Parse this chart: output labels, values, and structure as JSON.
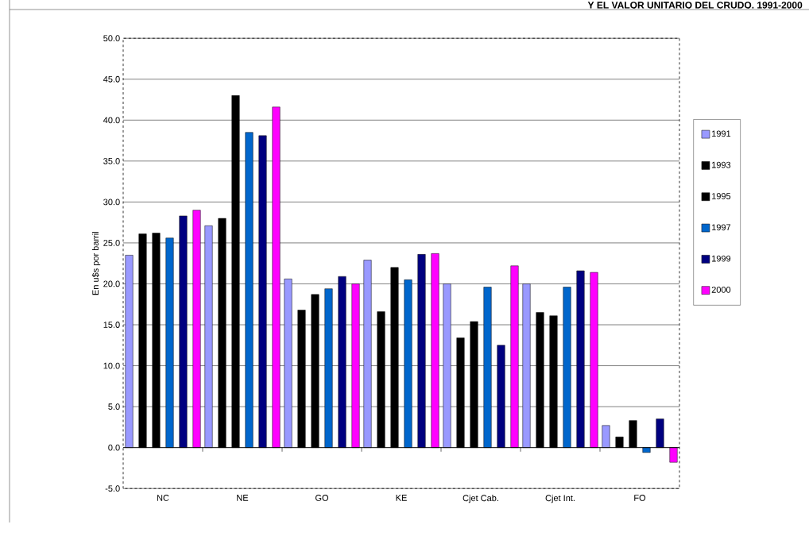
{
  "chart_data": {
    "type": "bar",
    "title": "Y EL VALOR UNITARIO DEL CRUDO. 1991-2000",
    "ylabel": "En u$s por barril",
    "categories": [
      "NC",
      "NE",
      "GO",
      "KE",
      "Cjet Cab.",
      "Cjet Int.",
      "FO"
    ],
    "series": [
      {
        "name": "1991",
        "color": "#9999ff",
        "values": [
          23.5,
          27.1,
          20.6,
          22.9,
          20.0,
          20.0,
          2.7
        ]
      },
      {
        "name": "1993",
        "color": "#000000",
        "values": [
          26.1,
          28.0,
          16.8,
          16.6,
          13.4,
          16.5,
          1.3
        ]
      },
      {
        "name": "1995",
        "color": "#000000",
        "values": [
          26.2,
          43.0,
          18.7,
          22.0,
          15.4,
          16.1,
          3.3
        ]
      },
      {
        "name": "1997",
        "color": "#0066cc",
        "values": [
          25.6,
          38.5,
          19.4,
          20.5,
          19.6,
          19.6,
          -0.6
        ]
      },
      {
        "name": "1999",
        "color": "#000080",
        "values": [
          28.3,
          38.1,
          20.9,
          23.6,
          12.5,
          21.6,
          3.5
        ]
      },
      {
        "name": "2000",
        "color": "#ff00ff",
        "values": [
          29.0,
          41.6,
          20.0,
          23.7,
          22.2,
          21.4,
          -1.8
        ]
      }
    ],
    "ylim": [
      -5,
      50
    ],
    "yticks": [
      {
        "value": -5,
        "label": "-5.0"
      },
      {
        "value": 0,
        "label": "0.0"
      },
      {
        "value": 5,
        "label": "5.0"
      },
      {
        "value": 10,
        "label": "10.0"
      },
      {
        "value": 15,
        "label": "15.0"
      },
      {
        "value": 20,
        "label": "20.0"
      },
      {
        "value": 25,
        "label": "25.0"
      },
      {
        "value": 30,
        "label": "30.0"
      },
      {
        "value": 35,
        "label": "35.0"
      },
      {
        "value": 40,
        "label": "40.0"
      },
      {
        "value": 45,
        "label": "45.0"
      },
      {
        "value": 50,
        "label": "50.0"
      }
    ],
    "grid": "y",
    "legend": "right"
  }
}
